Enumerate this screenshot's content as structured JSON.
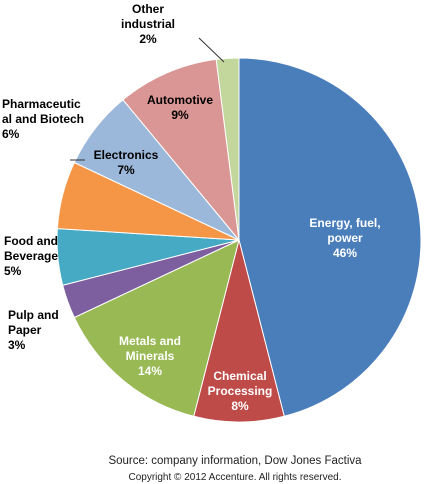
{
  "chart_data": {
    "type": "pie",
    "categories": [
      "Energy, fuel,\npower",
      "Chemical\nProcessing",
      "Metals and\nMinerals",
      "Pulp and\nPaper",
      "Food and\nBeverage",
      "Pharmaceutic\nal and Biotech",
      "Electronics",
      "Automotive",
      "Other\nindustrial"
    ],
    "values": [
      46,
      8,
      14,
      3,
      5,
      6,
      7,
      9,
      2
    ],
    "value_labels": [
      "46%",
      "8%",
      "14%",
      "3%",
      "5%",
      "6%",
      "7%",
      "9%",
      "2%"
    ],
    "colors": [
      "#4a7ebb",
      "#be4b48",
      "#98b954",
      "#7d5fa0",
      "#46aac5",
      "#f59646",
      "#9bb7d9",
      "#d99694",
      "#c3d69b"
    ],
    "source": "Source: company information, Dow Jones Factiva",
    "copyright": "Copyright © 2012 Accenture. All rights reserved."
  }
}
